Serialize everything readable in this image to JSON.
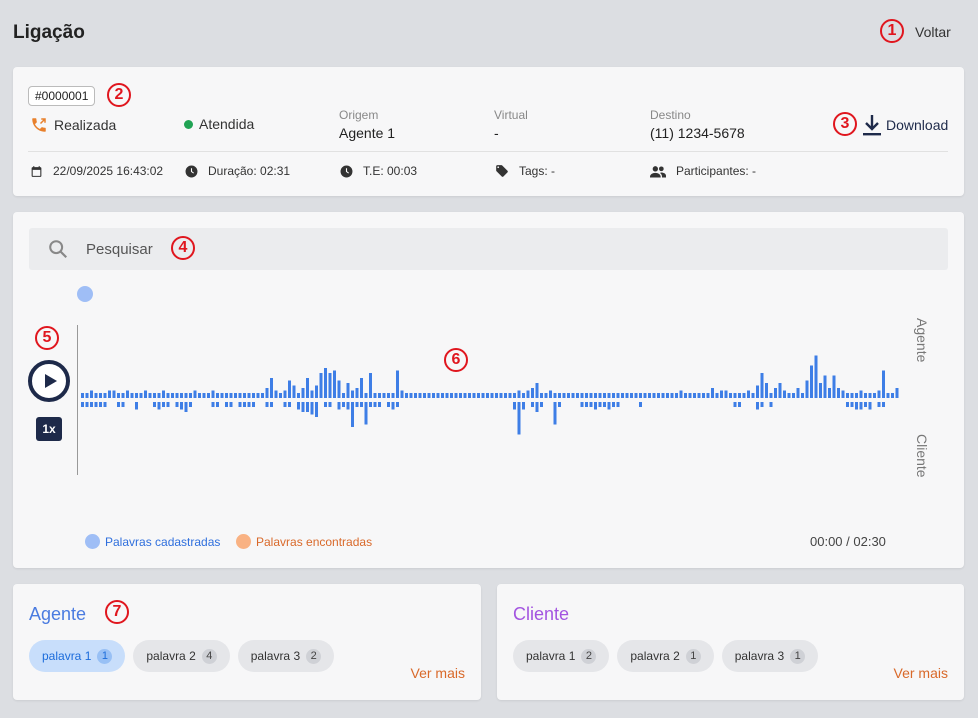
{
  "header": {
    "title": "Ligação",
    "back_label": "Voltar"
  },
  "call": {
    "id": "#0000001",
    "type_label": "Realizada",
    "status_label": "Atendida",
    "origin": {
      "label": "Origem",
      "value": "Agente 1"
    },
    "virtual": {
      "label": "Virtual",
      "value": "-"
    },
    "destination": {
      "label": "Destino",
      "value": "(11) 1234-5678"
    },
    "download_label": "Download",
    "date": "22/09/2025 16:43:02",
    "duration": "Duração: 02:31",
    "te": "T.E: 00:03",
    "tags": "Tags: -",
    "participants": "Participantes: -"
  },
  "player": {
    "search_placeholder": "Pesquisar",
    "speed": "1x",
    "agent_label": "Agente",
    "client_label": "Cliente",
    "legend_registered": "Palavras cadastradas",
    "legend_found": "Palavras encontradas",
    "time": "00:00 / 02:30",
    "agent_wave": [
      2,
      2,
      3,
      2,
      2,
      2,
      3,
      3,
      2,
      2,
      3,
      2,
      2,
      2,
      3,
      2,
      2,
      2,
      3,
      2,
      2,
      2,
      2,
      2,
      2,
      3,
      2,
      2,
      2,
      3,
      2,
      2,
      2,
      2,
      2,
      2,
      2,
      2,
      2,
      2,
      2,
      4,
      8,
      3,
      2,
      3,
      7,
      5,
      2,
      4,
      8,
      3,
      5,
      10,
      12,
      10,
      11,
      7,
      2,
      6,
      3,
      4,
      8,
      2,
      10,
      2,
      2,
      2,
      2,
      2,
      11,
      3,
      2,
      2,
      2,
      2,
      2,
      2,
      2,
      2,
      2,
      2,
      2,
      2,
      2,
      2,
      2,
      2,
      2,
      2,
      2,
      2,
      2,
      2,
      2,
      2,
      2,
      3,
      2,
      3,
      4,
      6,
      2,
      2,
      3,
      2,
      2,
      2,
      2,
      2,
      2,
      2,
      2,
      2,
      2,
      2,
      2,
      2,
      2,
      2,
      2,
      2,
      2,
      2,
      2,
      2,
      2,
      2,
      2,
      2,
      2,
      2,
      2,
      3,
      2,
      2,
      2,
      2,
      2,
      2,
      4,
      2,
      3,
      3,
      2,
      2,
      2,
      2,
      3,
      2,
      5,
      10,
      6,
      2,
      4,
      6,
      3,
      2,
      2,
      4,
      2,
      7,
      13,
      17,
      6,
      9,
      4,
      9,
      4,
      3,
      2,
      2,
      2,
      3,
      2,
      2,
      2,
      3,
      11,
      2,
      2,
      4,
      13,
      2,
      2,
      2,
      2,
      2,
      2,
      2,
      2,
      2
    ],
    "client_wave": [
      2,
      2,
      2,
      2,
      2,
      2,
      0,
      0,
      2,
      2,
      0,
      0,
      3,
      0,
      0,
      0,
      2,
      3,
      2,
      2,
      0,
      2,
      3,
      4,
      2,
      0,
      0,
      0,
      0,
      2,
      2,
      0,
      2,
      2,
      0,
      2,
      2,
      2,
      2,
      0,
      0,
      2,
      2,
      0,
      0,
      2,
      2,
      0,
      3,
      4,
      4,
      5,
      6,
      0,
      2,
      2,
      0,
      3,
      2,
      3,
      10,
      2,
      2,
      9,
      2,
      2,
      2,
      0,
      2,
      3,
      2,
      0,
      0,
      0,
      0,
      0,
      0,
      0,
      0,
      0,
      0,
      0,
      0,
      0,
      0,
      0,
      0,
      0,
      0,
      0,
      0,
      0,
      0,
      0,
      0,
      0,
      3,
      13,
      3,
      0,
      2,
      4,
      2,
      0,
      0,
      9,
      2,
      0,
      0,
      0,
      0,
      2,
      2,
      2,
      3,
      2,
      2,
      3,
      2,
      2,
      0,
      0,
      0,
      0,
      2,
      0,
      0,
      0,
      0,
      0,
      0,
      0,
      0,
      0,
      0,
      0,
      0,
      0,
      0,
      0,
      0,
      0,
      0,
      0,
      0,
      2,
      2,
      0,
      0,
      0,
      3,
      2,
      0,
      2,
      0,
      0,
      0,
      0,
      0,
      0,
      0,
      0,
      0,
      0,
      0,
      0,
      0,
      0,
      0,
      0,
      2,
      2,
      3,
      3,
      2,
      3,
      0,
      2,
      2,
      0,
      0,
      0,
      2,
      0,
      0,
      0,
      3,
      2,
      0,
      0,
      0,
      0,
      0
    ]
  },
  "agent_section": {
    "title": "Agente",
    "chips": [
      {
        "label": "palavra 1",
        "count": "1"
      },
      {
        "label": "palavra 2",
        "count": "4"
      },
      {
        "label": "palavra 3",
        "count": "2"
      }
    ],
    "see_more": "Ver mais"
  },
  "client_section": {
    "title": "Cliente",
    "chips": [
      {
        "label": "palavra 1",
        "count": "2"
      },
      {
        "label": "palavra 2",
        "count": "1"
      },
      {
        "label": "palavra 3",
        "count": "1"
      }
    ],
    "see_more": "Ver mais"
  },
  "colors": {
    "agent_title": "#4a7be0",
    "client_title": "#a354e0",
    "wave": "#3e7ee6",
    "legend_registered": "#9fbef6",
    "legend_found": "#f9b283",
    "legend_registered_text": "#2f6fdd",
    "legend_found_text": "#d9692a"
  }
}
